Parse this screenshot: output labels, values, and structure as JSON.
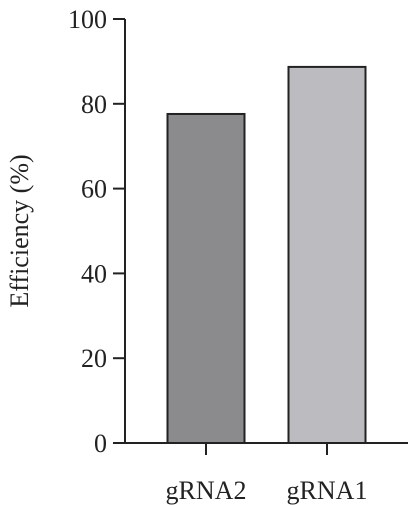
{
  "chart_data": {
    "type": "bar",
    "y_label": "Efficiency (%)",
    "categories": [
      "gRNA2",
      "gRNA1"
    ],
    "values": [
      77.6,
      88.7
    ],
    "colors": [
      "#8b8b8d",
      "#bcbcc0"
    ],
    "ylim": [
      0,
      100
    ],
    "yticks": [
      0,
      20,
      40,
      60,
      80,
      100
    ]
  }
}
